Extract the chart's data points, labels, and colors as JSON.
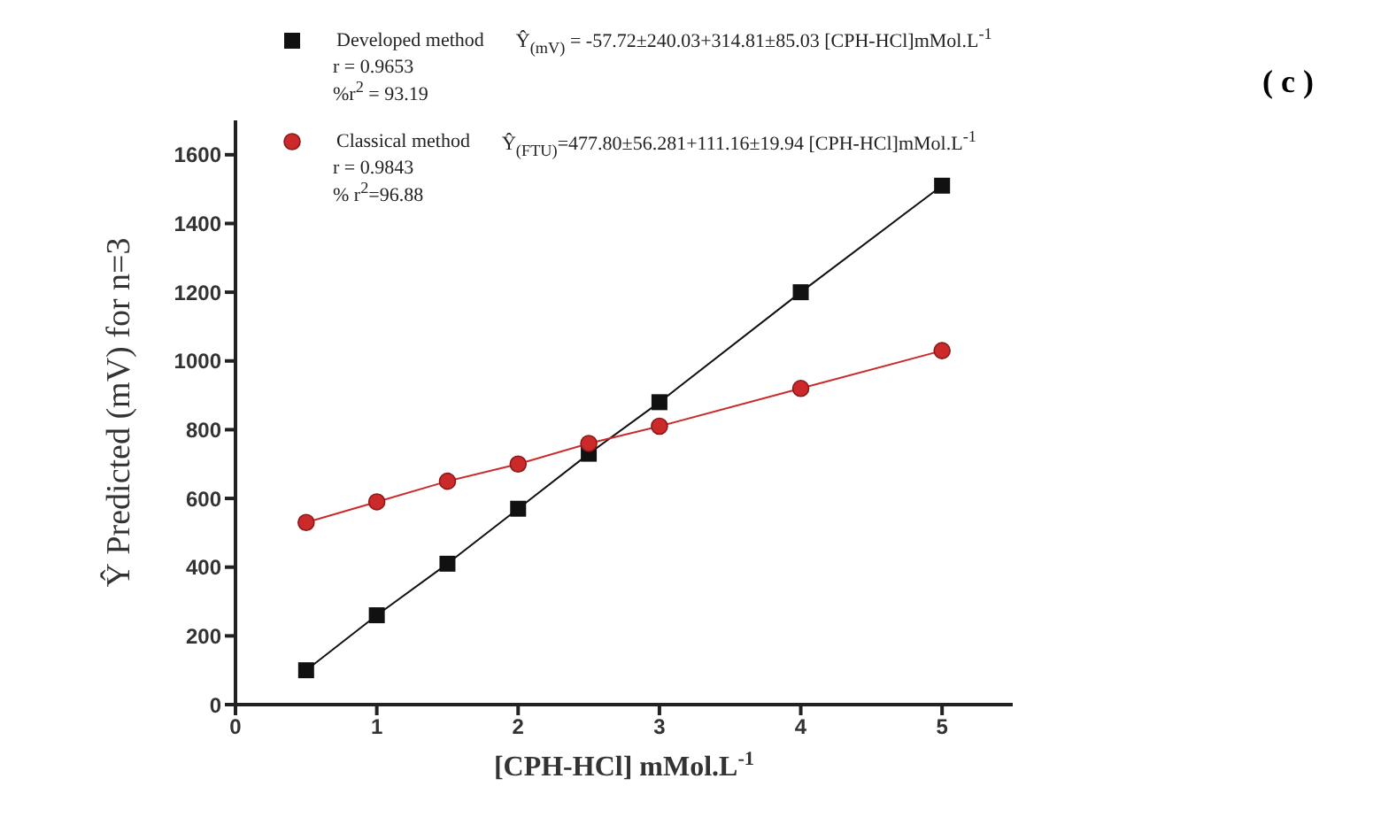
{
  "chart_data": {
    "type": "line",
    "xlabel": "[CPH-HCl] mMol.L$^{-1}$",
    "ylabel": "Ŷ Predicted (mV) for n=3",
    "x": [
      0.5,
      1,
      1.5,
      2,
      2.5,
      3,
      4,
      5
    ],
    "series": [
      {
        "name": "Developed method",
        "color": "#111111",
        "marker": "square",
        "values": [
          100,
          260,
          410,
          570,
          730,
          880,
          1200,
          1510
        ]
      },
      {
        "name": "Classical method",
        "color": "#cc2a2a",
        "marker": "circle",
        "values": [
          530,
          590,
          650,
          700,
          760,
          810,
          920,
          1030
        ]
      }
    ],
    "annotations": [
      "Ŷ$_{(mV)}$ = -57.72±240.03+314.81±85.03 [CPH-HCl]mMol.L$^{-1}$",
      "r = 0.9653",
      "%r$^{2}$ = 93.19",
      "Ŷ$_{(FTU)}$=477.80±56.281+111.16±19.94 [CPH-HCl]mMol.L$^{-1}$",
      "r = 0.9843",
      "% r$^{2}$=96.88",
      "( c )"
    ],
    "xlim": [
      0,
      5.5
    ],
    "xticks": [
      0,
      1,
      2,
      3,
      4,
      5
    ],
    "ylim": [
      0,
      1700
    ],
    "yticks": [
      0,
      200,
      400,
      600,
      800,
      1000,
      1200,
      1400,
      1600
    ],
    "grid": false,
    "legend": "top left",
    "line_style": "solid"
  }
}
